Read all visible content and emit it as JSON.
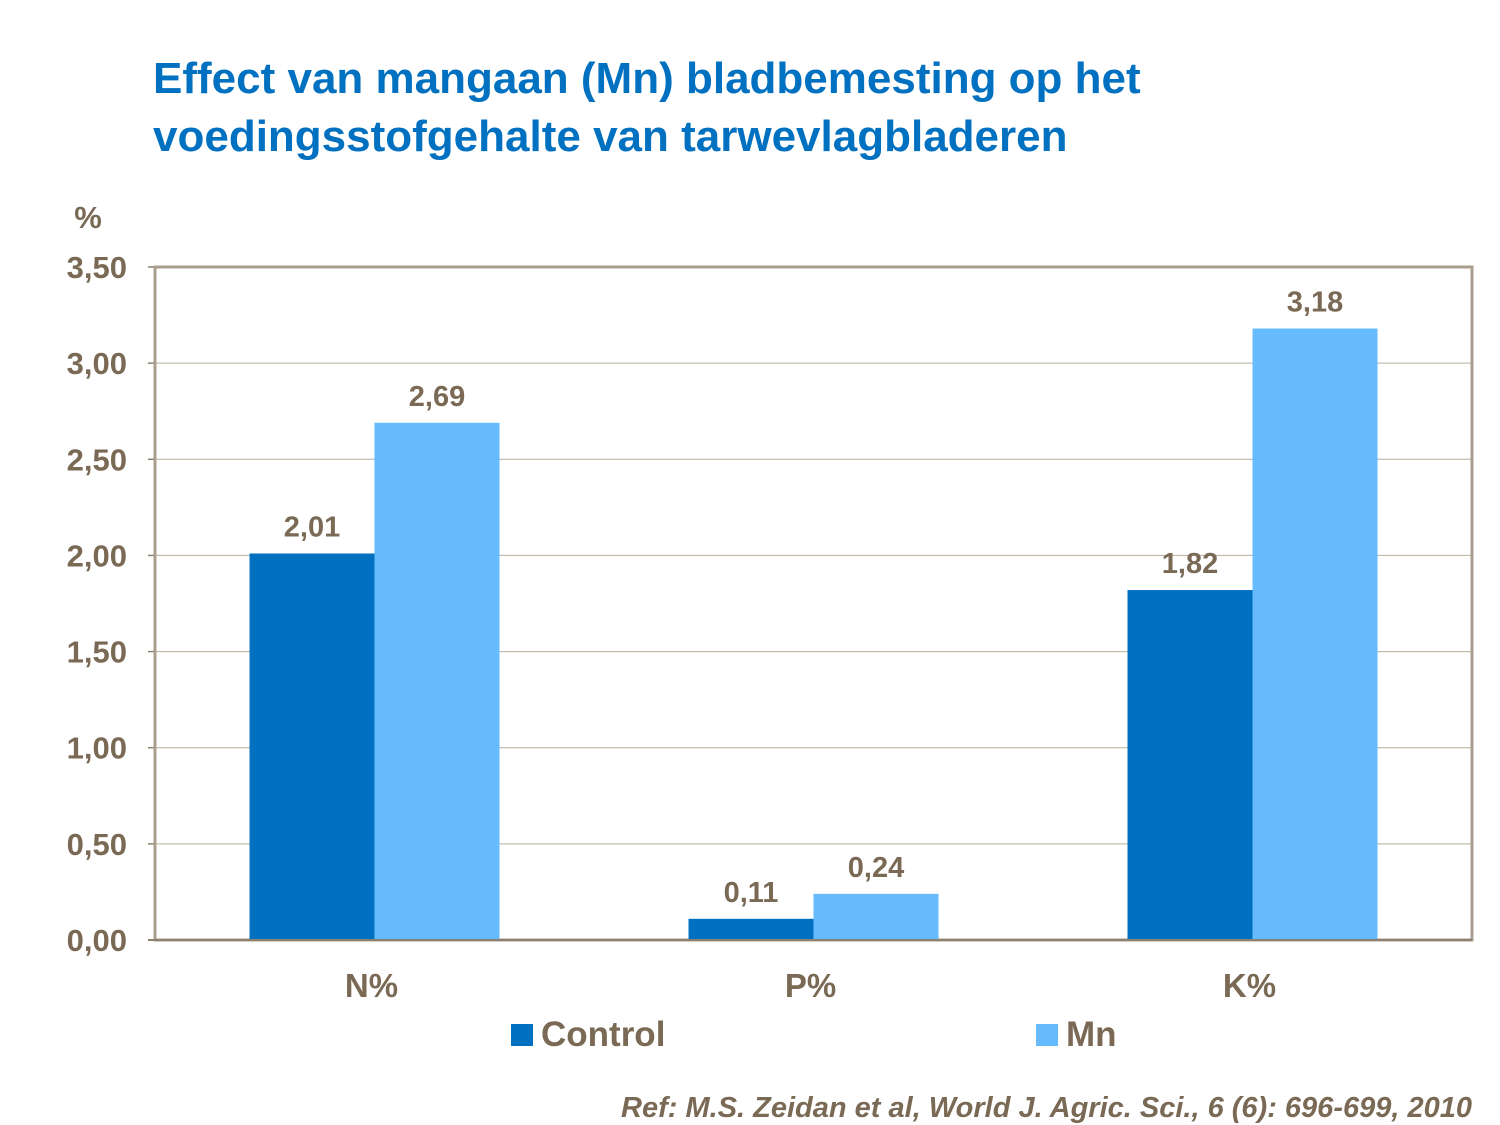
{
  "title_line1": "Effect van mangaan (Mn) bladbemesting op het",
  "title_line2": "voedingsstofgehalte van tarwevlagbladeren",
  "reference": "Ref: M.S. Zeidan et al, World J. Agric. Sci., 6 (6): 696-699, 2010",
  "chart_data": {
    "type": "bar",
    "title": "Effect van mangaan (Mn) bladbemesting op het voedingsstofgehalte van tarwevlagbladeren",
    "ylabel": "%",
    "xlabel": "",
    "categories": [
      "N%",
      "P%",
      "K%"
    ],
    "series": [
      {
        "name": "Control",
        "color": "#0070C0",
        "values": [
          2.01,
          0.11,
          1.82
        ],
        "labels": [
          "2,01",
          "0,11",
          "1,82"
        ]
      },
      {
        "name": "Mn",
        "color": "#66BBFF",
        "values": [
          2.69,
          0.24,
          3.18
        ],
        "labels": [
          "2,69",
          "0,24",
          "3,18"
        ]
      }
    ],
    "ylim": [
      0,
      3.5
    ],
    "yticks": [
      0,
      0.5,
      1,
      1.5,
      2,
      2.5,
      3,
      3.5
    ],
    "ytick_labels": [
      "0,00",
      "0,50",
      "1,00",
      "1,50",
      "2,00",
      "2,50",
      "3,00",
      "3,50"
    ],
    "grid": true,
    "legend_position": "bottom"
  }
}
